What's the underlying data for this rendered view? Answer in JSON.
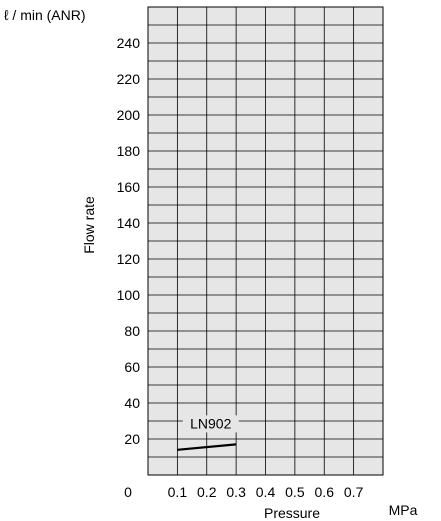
{
  "chart_data": {
    "type": "line",
    "title": "",
    "unit_y": "ℓ / min (ANR)",
    "unit_x": "MPa",
    "xlabel": "Pressure",
    "ylabel": "Flow rate",
    "xlim": [
      0,
      0.8
    ],
    "ylim": [
      0,
      260
    ],
    "x_origin_label": "0",
    "x_ticks": [
      0.1,
      0.2,
      0.3,
      0.4,
      0.5,
      0.6,
      0.7
    ],
    "x_tick_labels": [
      "0.1",
      "0.2",
      "0.3",
      "0.4",
      "0.5",
      "0.6",
      "0.7"
    ],
    "y_ticks": [
      20,
      40,
      60,
      80,
      100,
      120,
      140,
      160,
      180,
      200,
      220,
      240
    ],
    "y_tick_labels": [
      "20",
      "40",
      "60",
      "80",
      "100",
      "120",
      "140",
      "160",
      "180",
      "200",
      "220",
      "240"
    ],
    "grid": true,
    "grid_minor_y_step": 10,
    "background_color": "#e6e6e6",
    "series": [
      {
        "name": "LN902",
        "x": [
          0.1,
          0.3
        ],
        "y": [
          14,
          17
        ]
      }
    ],
    "annotations": [
      {
        "text": "LN902",
        "series": "LN902"
      }
    ]
  }
}
